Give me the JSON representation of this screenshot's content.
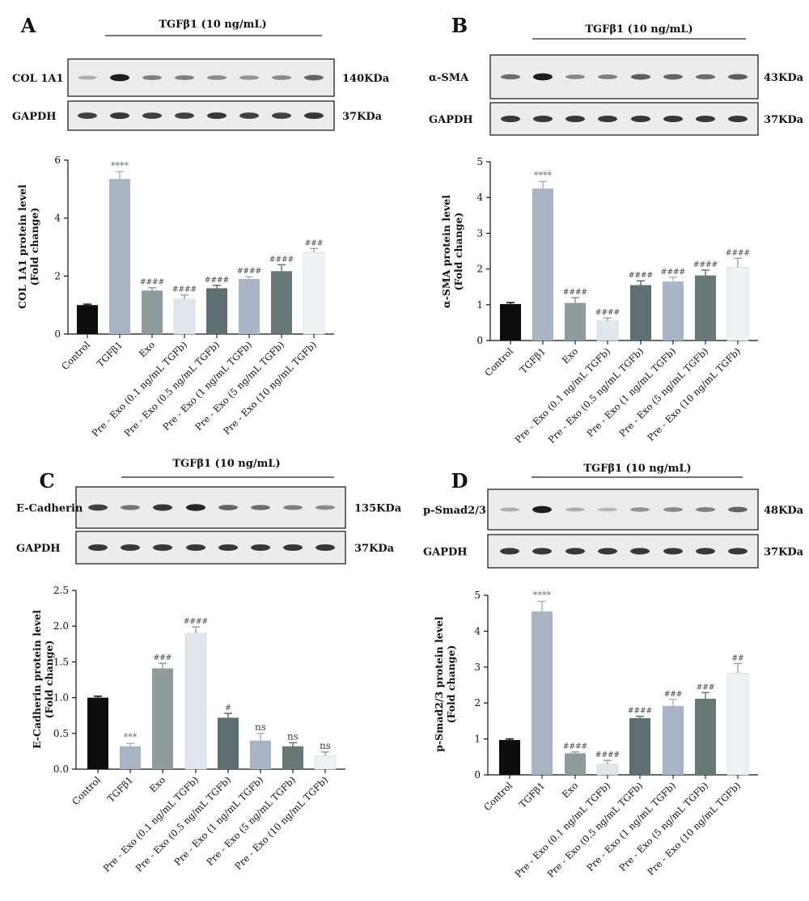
{
  "treatment_header": "TGFβ1 (10 ng/mL)",
  "categories": [
    "Control",
    "TGFβ1",
    "Exo",
    "Pre - Exo (0.1 ng/mL TGFb)",
    "Pre - Exo (0.5 ng/mL TGFb)",
    "Pre - Exo (1 ng/mL TGFb)",
    "Pre - Exo (5 ng/mL TGFb)",
    "Pre - Exo (10 ng/mL TGFb)"
  ],
  "bar_colors": [
    "#0d0d0d",
    "#a8b4c2",
    "#8e9c9e",
    "#dfe6ec",
    "#5f6e70",
    "#a9b5c7",
    "#687778",
    "#eff2f4"
  ],
  "panels": [
    {
      "letter": "A",
      "blots": [
        {
          "label": "COL 1A1",
          "kda": "140KDa",
          "intensity": [
            0.15,
            0.95,
            0.4,
            0.4,
            0.35,
            0.3,
            0.35,
            0.55
          ]
        },
        {
          "label": "GAPDH",
          "kda": "37KDa",
          "intensity": [
            0.75,
            0.8,
            0.75,
            0.75,
            0.8,
            0.75,
            0.75,
            0.8
          ]
        }
      ]
    },
    {
      "letter": "B",
      "blots": [
        {
          "label": "α-SMA",
          "kda": "43KDa",
          "intensity": [
            0.5,
            0.95,
            0.35,
            0.4,
            0.6,
            0.55,
            0.5,
            0.6
          ]
        },
        {
          "label": "GAPDH",
          "kda": "37KDa",
          "intensity": [
            0.8,
            0.8,
            0.8,
            0.8,
            0.8,
            0.8,
            0.8,
            0.8
          ]
        }
      ]
    },
    {
      "letter": "C",
      "blots": [
        {
          "label": "E-Cadherin",
          "kda": "135KDa",
          "intensity": [
            0.75,
            0.45,
            0.8,
            0.9,
            0.55,
            0.5,
            0.4,
            0.35
          ]
        },
        {
          "label": "GAPDH",
          "kda": "37KDa",
          "intensity": [
            0.8,
            0.8,
            0.8,
            0.8,
            0.8,
            0.8,
            0.8,
            0.8
          ]
        }
      ]
    },
    {
      "letter": "D",
      "blots": [
        {
          "label": "p-Smad2/3",
          "kda": "48KDa",
          "intensity": [
            0.15,
            0.95,
            0.15,
            0.1,
            0.3,
            0.35,
            0.4,
            0.55
          ]
        },
        {
          "label": "GAPDH",
          "kda": "37KDa",
          "intensity": [
            0.8,
            0.8,
            0.8,
            0.8,
            0.8,
            0.8,
            0.8,
            0.8
          ]
        }
      ]
    }
  ],
  "chart_data": [
    {
      "type": "bar",
      "ylabel": "COL 1A1 protein level (Fold change)",
      "ylabel_lines": [
        "COL 1A1 protein level",
        "(Fold change)"
      ],
      "ylim": [
        0,
        6
      ],
      "yticks": [
        "0",
        "2",
        "4",
        "6"
      ],
      "ytick_values": [
        0,
        2,
        4,
        6
      ],
      "values": [
        1.0,
        5.35,
        1.5,
        1.2,
        1.58,
        1.9,
        2.17,
        2.82
      ],
      "errors": [
        0.03,
        0.25,
        0.1,
        0.15,
        0.1,
        0.08,
        0.22,
        0.13
      ],
      "annotations": [
        "",
        "****",
        "####",
        "####",
        "####",
        "####",
        "####",
        "###"
      ]
    },
    {
      "type": "bar",
      "ylabel": "α-SMA protein level (Fold change)",
      "ylabel_lines": [
        "α-SMA protein level",
        "(Fold change)"
      ],
      "ylim": [
        0,
        5
      ],
      "yticks": [
        "0",
        "1",
        "2",
        "3",
        "4",
        "5"
      ],
      "ytick_values": [
        0,
        1,
        2,
        3,
        4,
        5
      ],
      "values": [
        1.02,
        4.25,
        1.05,
        0.55,
        1.55,
        1.65,
        1.82,
        2.05
      ],
      "errors": [
        0.04,
        0.2,
        0.15,
        0.08,
        0.12,
        0.12,
        0.15,
        0.25
      ],
      "annotations": [
        "",
        "****",
        "####",
        "####",
        "####",
        "####",
        "####",
        "####"
      ]
    },
    {
      "type": "bar",
      "ylabel": "E-Cadherin protein level (Fold change)",
      "ylabel_lines": [
        "E-Cadherin protein level",
        "(Fold change)"
      ],
      "ylim": [
        0,
        2.5
      ],
      "yticks": [
        "0.0",
        "0.5",
        "1.0",
        "1.5",
        "2.0",
        "2.5"
      ],
      "ytick_values": [
        0,
        0.5,
        1.0,
        1.5,
        2.0,
        2.5
      ],
      "values": [
        1.0,
        0.32,
        1.41,
        1.9,
        0.72,
        0.4,
        0.32,
        0.19
      ],
      "errors": [
        0.02,
        0.04,
        0.07,
        0.09,
        0.06,
        0.1,
        0.05,
        0.05
      ],
      "annotations": [
        "",
        "***",
        "###",
        "####",
        "#",
        "ns",
        "ns",
        "ns"
      ]
    },
    {
      "type": "bar",
      "ylabel": "p-Smad2/3 protein level (Fold change)",
      "ylabel_lines": [
        "p-Smad2/3 protein level",
        "(Fold change)"
      ],
      "ylim": [
        0,
        5
      ],
      "yticks": [
        "0",
        "1",
        "2",
        "3",
        "4",
        "5"
      ],
      "ytick_values": [
        0,
        1,
        2,
        3,
        4,
        5
      ],
      "values": [
        0.97,
        4.55,
        0.6,
        0.3,
        1.58,
        1.92,
        2.12,
        2.83
      ],
      "errors": [
        0.03,
        0.28,
        0.04,
        0.1,
        0.05,
        0.18,
        0.17,
        0.27
      ],
      "annotations": [
        "",
        "****",
        "####",
        "####",
        "####",
        "###",
        "###",
        "##"
      ]
    }
  ]
}
